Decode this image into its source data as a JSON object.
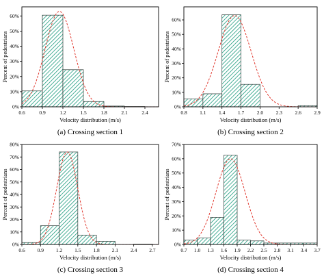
{
  "chart_data": [
    {
      "type": "bar",
      "caption": "(a) Crossing section 1",
      "xlabel": "Velocity distribution (m/s)",
      "ylabel": "Percent of pedestrians",
      "xticks": [
        "0.6",
        "0.9",
        "1.2",
        "1.5",
        "1.8",
        "2.1",
        "2.4"
      ],
      "yticks": [
        "0%",
        "10%",
        "20%",
        "30%",
        "40%",
        "50%",
        "60%"
      ],
      "xlim": [
        0.6,
        2.6
      ],
      "ylim": [
        0,
        66
      ],
      "bins": [
        [
          0.6,
          0.9
        ],
        [
          0.9,
          1.2
        ],
        [
          1.2,
          1.5
        ],
        [
          1.5,
          1.8
        ],
        [
          1.8,
          2.1
        ],
        [
          2.1,
          2.4
        ]
      ],
      "values": [
        10.5,
        60.5,
        24.5,
        3.5,
        0.5,
        0.2
      ],
      "curve": {
        "type": "normal",
        "mean": 1.15,
        "sd": 0.21,
        "peak": 63
      }
    },
    {
      "type": "bar",
      "caption": "(b) Crossing section 2",
      "xlabel": "Velocity distribution (m/s)",
      "ylabel": "Percent of pedestrians",
      "xticks": [
        "0.8",
        "1.1",
        "1.4",
        "1.7",
        "2.0",
        "2.3",
        "2.6",
        "2.9"
      ],
      "yticks": [
        "0%",
        "10%",
        "20%",
        "30%",
        "40%",
        "50%",
        "60%"
      ],
      "xlim": [
        0.8,
        2.9
      ],
      "ylim": [
        0,
        69
      ],
      "bins": [
        [
          0.8,
          1.1
        ],
        [
          1.1,
          1.4
        ],
        [
          1.4,
          1.7
        ],
        [
          1.7,
          2.0
        ],
        [
          2.6,
          2.9
        ]
      ],
      "values": [
        5.5,
        9,
        63.5,
        15.5,
        0.8
      ],
      "curve": {
        "type": "normal",
        "mean": 1.6,
        "sd": 0.26,
        "peak": 63
      }
    },
    {
      "type": "bar",
      "caption": "(c) Crossing section 3",
      "xlabel": "Velocity distribution (m/s)",
      "ylabel": "Percent of pedestrians",
      "xticks": [
        "0.6",
        "0.9",
        "1.2",
        "1.5",
        "1.8",
        "2.1",
        "2.4",
        "2.7"
      ],
      "yticks": [
        "0%",
        "10%",
        "20%",
        "30%",
        "40%",
        "50%",
        "60%",
        "70%",
        "80%"
      ],
      "xlim": [
        0.6,
        2.8
      ],
      "ylim": [
        0,
        80
      ],
      "bins": [
        [
          0.6,
          0.9
        ],
        [
          0.9,
          1.2
        ],
        [
          1.2,
          1.5
        ],
        [
          1.5,
          1.8
        ],
        [
          1.8,
          2.1
        ],
        [
          2.4,
          2.7
        ]
      ],
      "values": [
        1.5,
        15,
        74,
        7.5,
        2.5,
        0.3
      ],
      "curve": {
        "type": "normal",
        "mean": 1.33,
        "sd": 0.17,
        "peak": 74
      }
    },
    {
      "type": "bar",
      "caption": "(d) Crossing section 4",
      "xlabel": "Velocity distribution (m/s)",
      "ylabel": "Percent of pedestrians",
      "xticks": [
        "0.7",
        "1.0",
        "1.3",
        "1.6",
        "1.9",
        "2.2",
        "2.5",
        "2.8",
        "3.1",
        "3.4",
        "3.7"
      ],
      "yticks": [
        "0%",
        "10%",
        "20%",
        "30%",
        "40%",
        "50%",
        "60%",
        "70%"
      ],
      "xlim": [
        0.7,
        3.7
      ],
      "ylim": [
        0,
        70
      ],
      "bins": [
        [
          0.7,
          1.0
        ],
        [
          1.0,
          1.3
        ],
        [
          1.3,
          1.6
        ],
        [
          1.6,
          1.9
        ],
        [
          1.9,
          2.2
        ],
        [
          2.2,
          2.5
        ],
        [
          2.5,
          2.8
        ],
        [
          2.8,
          3.1
        ],
        [
          3.1,
          3.4
        ],
        [
          3.4,
          3.7
        ]
      ],
      "values": [
        3,
        4.5,
        19,
        62.5,
        3,
        2.5,
        1,
        1,
        1,
        1
      ],
      "curve": {
        "type": "normal",
        "mean": 1.75,
        "sd": 0.33,
        "peak": 60
      }
    }
  ]
}
